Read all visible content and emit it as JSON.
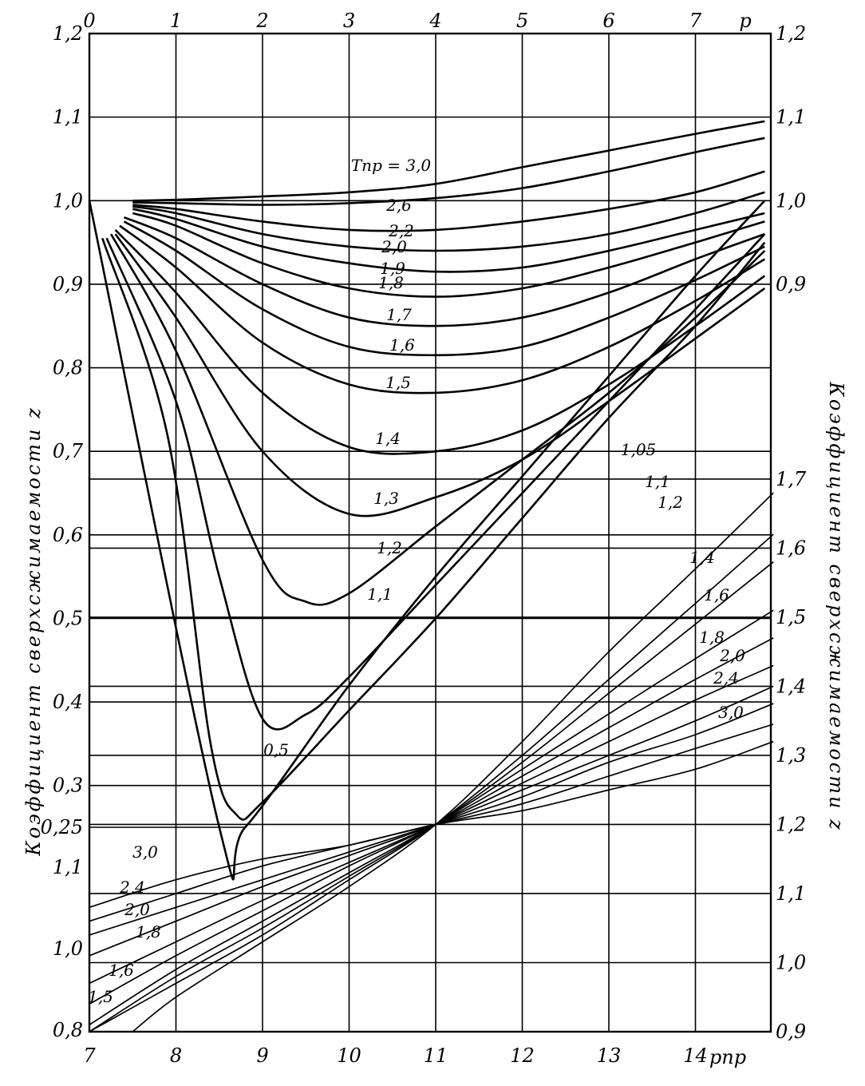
{
  "chart_data": [
    {
      "type": "line",
      "title": "",
      "panel": "upper",
      "xlabel": "p",
      "ylabel_left": "Коэффициент сверхсжимаемости z",
      "x_ticks": [
        "0",
        "1",
        "2",
        "3",
        "4",
        "5",
        "6",
        "7"
      ],
      "y_ticks": [
        "0,25",
        "0,3",
        "0,4",
        "0,5",
        "0,6",
        "0,7",
        "0,8",
        "0,9",
        "1,0",
        "1,1",
        "1,2"
      ],
      "xlim": [
        0,
        7.8
      ],
      "ylim": [
        0.25,
        1.2
      ],
      "grid": true,
      "series": [
        {
          "name": "Тпр = 3,0",
          "label": "Тпр = 3,0",
          "x": [
            0.5,
            1,
            2,
            3,
            4,
            5,
            6,
            7,
            7.8
          ],
          "y": [
            1.0,
            1.001,
            1.005,
            1.01,
            1.02,
            1.04,
            1.06,
            1.08,
            1.095
          ]
        },
        {
          "name": "2,6",
          "label": "2,6",
          "x": [
            0.5,
            1,
            2,
            3,
            4,
            5,
            6,
            7,
            7.8
          ],
          "y": [
            0.998,
            0.997,
            0.995,
            0.997,
            1.003,
            1.015,
            1.035,
            1.058,
            1.075
          ]
        },
        {
          "name": "2,2",
          "label": "2,2",
          "x": [
            0.5,
            1,
            2,
            3,
            4,
            5,
            6,
            7,
            7.8
          ],
          "y": [
            0.995,
            0.99,
            0.975,
            0.965,
            0.965,
            0.975,
            0.99,
            1.01,
            1.035
          ]
        },
        {
          "name": "2,0",
          "label": "2,0",
          "x": [
            0.5,
            1,
            2,
            3,
            4,
            5,
            6,
            7,
            7.8
          ],
          "y": [
            0.993,
            0.985,
            0.96,
            0.945,
            0.94,
            0.945,
            0.96,
            0.985,
            1.01
          ]
        },
        {
          "name": "1,9",
          "label": "1,9",
          "x": [
            0.5,
            1,
            2,
            3,
            4,
            5,
            6,
            7,
            7.8
          ],
          "y": [
            0.99,
            0.978,
            0.945,
            0.925,
            0.915,
            0.92,
            0.94,
            0.965,
            0.985
          ]
        },
        {
          "name": "1,8",
          "label": "1,8",
          "x": [
            0.5,
            1,
            2,
            3,
            4,
            5,
            6,
            7,
            7.8
          ],
          "y": [
            0.985,
            0.97,
            0.925,
            0.895,
            0.885,
            0.895,
            0.92,
            0.95,
            0.975
          ]
        },
        {
          "name": "1,7",
          "label": "1,7",
          "x": [
            0.4,
            1,
            2,
            3,
            4,
            5,
            6,
            7,
            7.8
          ],
          "y": [
            0.98,
            0.955,
            0.9,
            0.86,
            0.85,
            0.86,
            0.89,
            0.93,
            0.96
          ]
        },
        {
          "name": "1,6",
          "label": "1,6",
          "x": [
            0.4,
            1,
            2,
            3,
            4,
            5,
            6,
            7,
            7.8
          ],
          "y": [
            0.975,
            0.94,
            0.87,
            0.825,
            0.815,
            0.825,
            0.86,
            0.905,
            0.945
          ]
        },
        {
          "name": "1,5",
          "label": "1,5",
          "x": [
            0.35,
            1,
            2,
            3,
            4,
            5,
            6,
            7,
            7.8
          ],
          "y": [
            0.97,
            0.92,
            0.83,
            0.78,
            0.77,
            0.785,
            0.825,
            0.88,
            0.93
          ]
        },
        {
          "name": "1,4",
          "label": "1,4",
          "x": [
            0.3,
            1,
            2,
            3,
            4,
            5,
            6,
            7,
            7.8
          ],
          "y": [
            0.965,
            0.89,
            0.77,
            0.705,
            0.7,
            0.725,
            0.78,
            0.85,
            0.91
          ]
        },
        {
          "name": "1,3",
          "label": "1,3",
          "x": [
            0.3,
            1,
            2,
            3,
            4,
            5,
            6,
            7,
            7.8
          ],
          "y": [
            0.96,
            0.86,
            0.7,
            0.625,
            0.645,
            0.69,
            0.76,
            0.835,
            0.895
          ]
        },
        {
          "name": "1,2",
          "label": "1,2",
          "x": [
            0.25,
            1,
            2,
            2.5,
            3,
            4,
            5,
            6,
            7,
            7.8
          ],
          "y": [
            0.96,
            0.82,
            0.57,
            0.52,
            0.53,
            0.61,
            0.69,
            0.77,
            0.86,
            0.94
          ]
        },
        {
          "name": "1,1",
          "label": "1,1",
          "x": [
            0.2,
            1,
            1.5,
            2,
            2.5,
            3,
            4,
            5,
            6,
            7,
            7.8
          ],
          "y": [
            0.955,
            0.76,
            0.55,
            0.38,
            0.385,
            0.43,
            0.54,
            0.65,
            0.76,
            0.87,
            0.96
          ]
        },
        {
          "name": "1,05",
          "label": "1,05",
          "x": [
            0.15,
            0.9,
            1.4,
            1.7,
            2,
            3,
            4,
            5,
            6,
            7,
            7.8
          ],
          "y": [
            0.955,
            0.72,
            0.35,
            0.265,
            0.28,
            0.39,
            0.5,
            0.62,
            0.74,
            0.85,
            0.95
          ]
        },
        {
          "name": "0,5",
          "label": "0,5",
          "x": [
            0,
            1.5,
            1.8,
            3,
            4,
            5,
            6,
            7,
            7.8
          ],
          "y": [
            1.0,
            0.25,
            0.25,
            0.42,
            0.55,
            0.67,
            0.79,
            0.91,
            1.0
          ]
        }
      ]
    },
    {
      "type": "line",
      "title": "",
      "panel": "lower",
      "xlabel": "pпр",
      "ylabel_right": "Коэффициент сверхсжимаемости z",
      "x_ticks": [
        "7",
        "8",
        "9",
        "10",
        "11",
        "12",
        "13",
        "14"
      ],
      "y_ticks_left": [
        "0,8",
        "1,0",
        "1,1"
      ],
      "y_ticks_right": [
        "0,9",
        "1,0",
        "1,1",
        "1,2",
        "1,3",
        "1,4",
        "1,5",
        "1,6",
        "1,7"
      ],
      "xlim": [
        7,
        14.9
      ],
      "ylim": [
        0.9,
        1.76
      ],
      "grid": true,
      "series": [
        {
          "name": "3,0",
          "label": "3,0",
          "x": [
            7,
            8,
            9,
            10,
            11,
            12,
            13,
            14,
            14.9
          ],
          "y": [
            1.08,
            1.12,
            1.15,
            1.17,
            1.2,
            1.22,
            1.25,
            1.28,
            1.32
          ]
        },
        {
          "name": "2,4",
          "label": "2,4",
          "x": [
            7,
            8,
            9,
            10,
            11,
            12,
            13,
            14,
            14.9
          ],
          "y": [
            1.06,
            1.1,
            1.14,
            1.17,
            1.2,
            1.23,
            1.27,
            1.31,
            1.345
          ]
        },
        {
          "name": "2,0",
          "label": "2,0",
          "x": [
            7,
            8,
            9,
            10,
            11,
            12,
            13,
            14,
            14.9
          ],
          "y": [
            1.04,
            1.08,
            1.12,
            1.16,
            1.2,
            1.24,
            1.29,
            1.33,
            1.375
          ]
        },
        {
          "name": "1,8",
          "label": "1,8",
          "x": [
            7,
            8,
            9,
            10,
            11,
            12,
            13,
            14,
            14.9
          ],
          "y": [
            1.01,
            1.06,
            1.11,
            1.155,
            1.2,
            1.25,
            1.3,
            1.35,
            1.4
          ]
        },
        {
          "name": "1,6",
          "label": "1,6",
          "x": [
            7,
            8,
            9,
            10,
            11,
            12,
            13,
            14,
            14.9
          ],
          "y": [
            0.97,
            1.03,
            1.09,
            1.145,
            1.2,
            1.26,
            1.32,
            1.38,
            1.43
          ]
        },
        {
          "name": "1,5",
          "label": "1,5",
          "x": [
            7,
            8,
            9,
            10,
            11,
            12,
            13,
            14,
            14.9
          ],
          "y": [
            0.94,
            1.01,
            1.075,
            1.14,
            1.2,
            1.27,
            1.34,
            1.41,
            1.47
          ]
        },
        {
          "name": "1,4",
          "label": "1,4",
          "x": [
            7,
            8,
            9,
            10,
            11,
            12,
            13,
            14,
            14.9
          ],
          "y": [
            0.91,
            0.99,
            1.06,
            1.13,
            1.2,
            1.28,
            1.36,
            1.44,
            1.51
          ]
        },
        {
          "name": "1,2",
          "label": "1,2",
          "x": [
            7,
            8,
            9,
            10,
            11,
            12,
            13,
            14,
            14.9
          ],
          "y": [
            0.9,
            0.98,
            1.05,
            1.125,
            1.2,
            1.29,
            1.39,
            1.49,
            1.58
          ]
        },
        {
          "name": "1,1",
          "label": "1,1",
          "x": [
            7,
            8,
            9,
            10,
            11,
            12,
            13,
            14,
            14.9
          ],
          "y": [
            0.9,
            0.97,
            1.04,
            1.12,
            1.2,
            1.3,
            1.41,
            1.52,
            1.62
          ]
        },
        {
          "name": "1,05",
          "label": "1,05",
          "x": [
            7.5,
            8,
            9,
            10,
            11,
            12,
            13,
            14,
            14.9
          ],
          "y": [
            0.9,
            0.95,
            1.03,
            1.11,
            1.2,
            1.32,
            1.45,
            1.57,
            1.68
          ]
        }
      ]
    }
  ],
  "page": {
    "left_title": "Коэффициент   сверхсжимаемости   z",
    "right_title": "Коэффициент   сверхсжимаемости   z",
    "top_axis_name": "p",
    "bottom_axis_name": "pпр",
    "upper_curve_labels": [
      {
        "text": "Тпр = 3,0",
        "series": 0
      },
      {
        "text": "2,6",
        "series": 1
      },
      {
        "text": "2,2",
        "series": 2
      },
      {
        "text": "2,0",
        "series": 3
      },
      {
        "text": "1,9",
        "series": 4
      },
      {
        "text": "1,8",
        "series": 5
      },
      {
        "text": "1,7",
        "series": 6
      },
      {
        "text": "1,6",
        "series": 7
      },
      {
        "text": "1,5",
        "series": 8
      },
      {
        "text": "1,4",
        "series": 9
      },
      {
        "text": "1,3",
        "series": 10
      },
      {
        "text": "1,2",
        "series": 11
      },
      {
        "text": "1,1",
        "series": 12
      },
      {
        "text": "0,5",
        "series": 14
      },
      {
        "text": "1,05",
        "series": 13
      },
      {
        "text": "1,1",
        "series": 12
      },
      {
        "text": "1,2",
        "series": 11
      }
    ],
    "lower_curve_labels": [
      {
        "text": "3,0"
      },
      {
        "text": "2,4"
      },
      {
        "text": "2,0"
      },
      {
        "text": "1,8"
      },
      {
        "text": "1,6"
      },
      {
        "text": "1,5"
      },
      {
        "text": "1,4"
      },
      {
        "text": "1,6"
      },
      {
        "text": "1,8"
      },
      {
        "text": "2,0"
      },
      {
        "text": "2,4"
      },
      {
        "text": "3,0"
      }
    ]
  }
}
